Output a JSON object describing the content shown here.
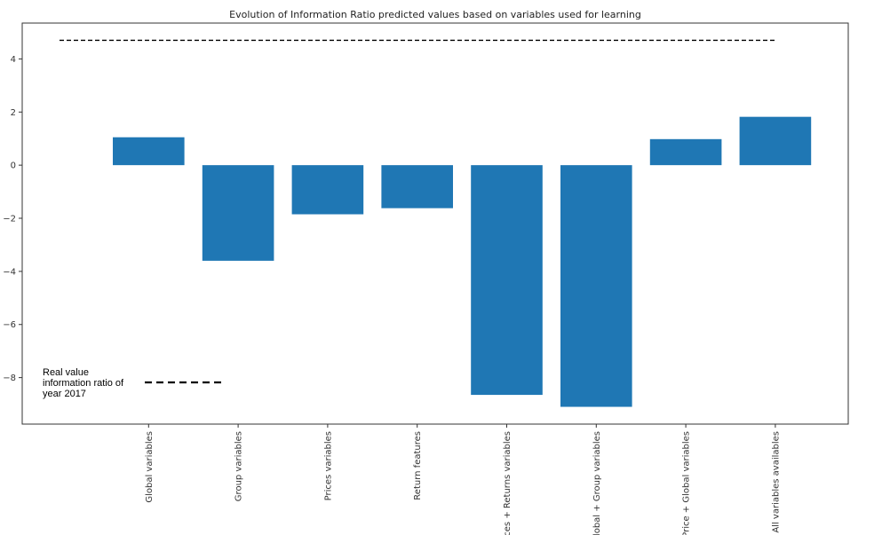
{
  "chart_data": {
    "type": "bar",
    "title": "Evolution of Information Ratio predicted values based on variables used for learning",
    "xlabel": "",
    "ylabel": "",
    "categories": [
      "Global variables",
      "Group variables",
      "Prices variables",
      "Return features",
      "Prices + Returns variables",
      "Global + Group variables",
      "Price + Global variables",
      "All variables availables"
    ],
    "values": [
      1.05,
      -3.6,
      -1.85,
      -1.62,
      -8.65,
      -9.1,
      0.98,
      1.82
    ],
    "ylim": [
      -9.75,
      5.35
    ],
    "yticks": [
      4,
      2,
      0,
      -2,
      -4,
      -6,
      -8
    ],
    "ytick_labels": [
      "4",
      "2",
      "0",
      "−2",
      "−4",
      "−6",
      "−8"
    ],
    "reference_line": {
      "value": 4.7,
      "style": "dashed",
      "color": "#000000"
    },
    "bar_color": "#1f77b4",
    "grid": false,
    "legend": {
      "placement": "bottom-left",
      "entries": [
        {
          "label": "Real value information ratio of year 2017",
          "style": "dashed"
        }
      ]
    }
  },
  "legend_lines": [
    "Real value",
    "information ratio of",
    "year 2017"
  ]
}
